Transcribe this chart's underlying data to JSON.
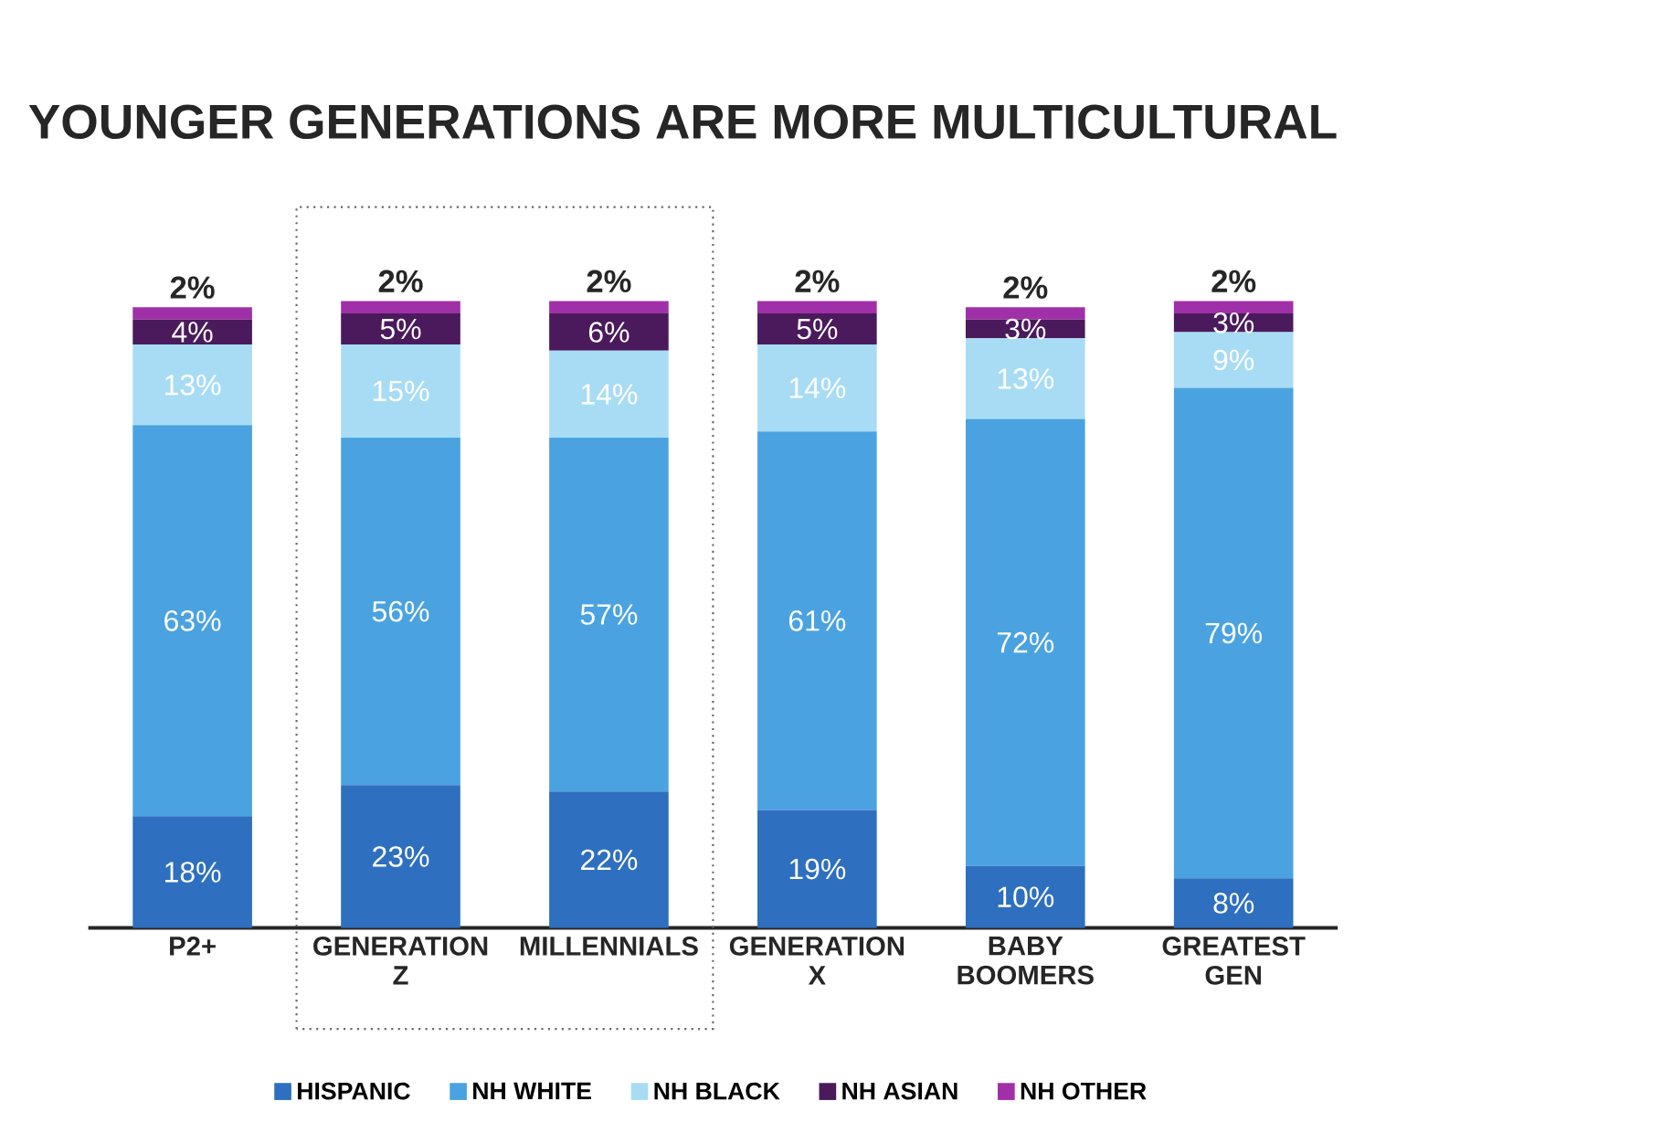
{
  "chart_data": {
    "type": "bar",
    "stacked": true,
    "title": "YOUNGER GENERATIONS ARE MORE MULTICULTURAL",
    "categories": [
      "P2+",
      "GENERATION Z",
      "MILLENNIALS",
      "GENERATION X",
      "BABY BOOMERS",
      "GREATEST GEN"
    ],
    "series": [
      {
        "name": "HISPANIC",
        "color": "#2e6fbf",
        "values": [
          18,
          23,
          22,
          19,
          10,
          8
        ],
        "value_labels": [
          "18%",
          "23%",
          "22%",
          "19%",
          "10%",
          "8%"
        ]
      },
      {
        "name": "NH WHITE",
        "color": "#4aa3e0",
        "values": [
          63,
          56,
          57,
          61,
          72,
          79
        ],
        "value_labels": [
          "63%",
          "56%",
          "57%",
          "61%",
          "72%",
          "79%"
        ]
      },
      {
        "name": "NH BLACK",
        "color": "#a8dcf5",
        "values": [
          13,
          15,
          14,
          14,
          13,
          9
        ],
        "value_labels": [
          "13%",
          "15%",
          "14%",
          "14%",
          "13%",
          "9%"
        ]
      },
      {
        "name": "NH ASIAN",
        "color": "#4a1a5c",
        "values": [
          4,
          5,
          6,
          5,
          3,
          3
        ],
        "value_labels": [
          "4%",
          "5%",
          "6%",
          "5%",
          "3%",
          "3%"
        ]
      },
      {
        "name": "NH OTHER",
        "color": "#a030a8",
        "values": [
          2,
          2,
          2,
          2,
          2,
          2
        ],
        "value_labels": [
          "2%",
          "2%",
          "2%",
          "2%",
          "2%",
          "2%"
        ]
      }
    ],
    "legend": "bottom"
  }
}
